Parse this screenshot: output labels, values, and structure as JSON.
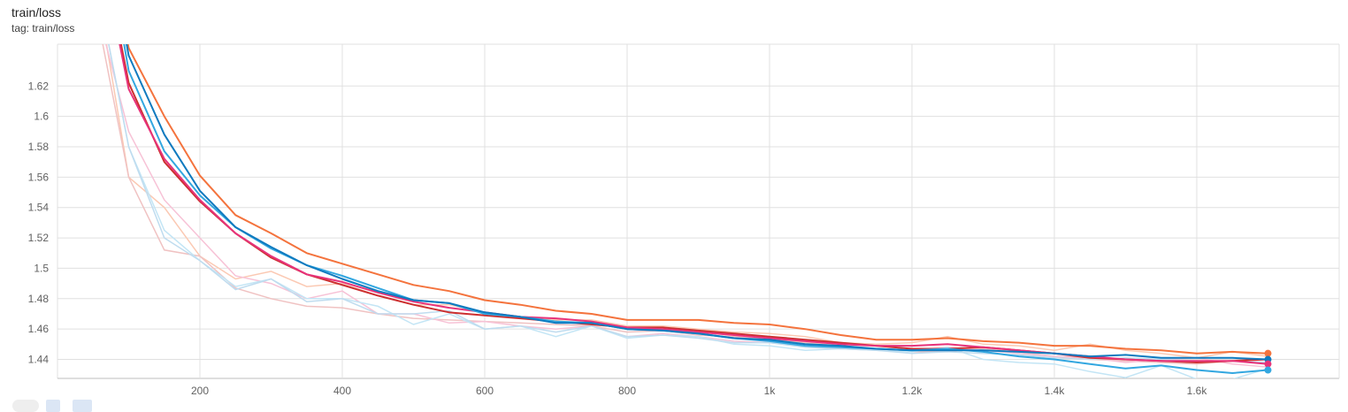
{
  "card": {
    "title": "train/loss",
    "subtitle": "tag: train/loss"
  },
  "chart_data": {
    "type": "line",
    "title": "train/loss",
    "xlabel": "",
    "ylabel": "",
    "xlim": [
      0,
      1800
    ],
    "ylim": [
      1.4275,
      1.6475
    ],
    "grid": true,
    "x_ticks": [
      {
        "value": 200,
        "label": "200"
      },
      {
        "value": 400,
        "label": "400"
      },
      {
        "value": 600,
        "label": "600"
      },
      {
        "value": 800,
        "label": "800"
      },
      {
        "value": 1000,
        "label": "1k"
      },
      {
        "value": 1200,
        "label": "1.2k"
      },
      {
        "value": 1400,
        "label": "1.4k"
      },
      {
        "value": 1600,
        "label": "1.6k"
      }
    ],
    "y_ticks": [
      {
        "value": 1.44,
        "label": "1.44"
      },
      {
        "value": 1.46,
        "label": "1.46"
      },
      {
        "value": 1.48,
        "label": "1.48"
      },
      {
        "value": 1.5,
        "label": "1.5"
      },
      {
        "value": 1.52,
        "label": "1.52"
      },
      {
        "value": 1.54,
        "label": "1.54"
      },
      {
        "value": 1.56,
        "label": "1.56"
      },
      {
        "value": 1.58,
        "label": "1.58"
      },
      {
        "value": 1.6,
        "label": "1.6"
      },
      {
        "value": 1.62,
        "label": "1.62"
      }
    ],
    "x": [
      50,
      100,
      150,
      200,
      250,
      300,
      350,
      400,
      450,
      500,
      550,
      600,
      650,
      700,
      750,
      800,
      850,
      900,
      950,
      1000,
      1050,
      1100,
      1150,
      1200,
      1250,
      1300,
      1350,
      1400,
      1450,
      1500,
      1550,
      1600,
      1650,
      1700
    ],
    "series": [
      {
        "color": "#f4733d",
        "raw_color": "#fbc9b3",
        "smoothed": [
          1.76,
          1.645,
          1.6,
          1.561,
          1.535,
          1.523,
          1.51,
          1.503,
          1.496,
          1.489,
          1.485,
          1.479,
          1.476,
          1.472,
          1.47,
          1.466,
          1.466,
          1.466,
          1.464,
          1.463,
          1.46,
          1.456,
          1.453,
          1.453,
          1.454,
          1.452,
          1.451,
          1.449,
          1.449,
          1.447,
          1.446,
          1.444,
          1.445,
          1.444
        ],
        "raw": [
          1.7,
          1.56,
          1.54,
          1.508,
          1.493,
          1.498,
          1.488,
          1.49,
          1.482,
          1.476,
          1.476,
          1.471,
          1.468,
          1.466,
          1.466,
          1.462,
          1.462,
          1.46,
          1.458,
          1.457,
          1.455,
          1.451,
          1.45,
          1.451,
          1.455,
          1.45,
          1.449,
          1.446,
          1.45,
          1.446,
          1.444,
          1.441,
          1.445,
          1.442
        ]
      },
      {
        "color": "#cc2f2f",
        "raw_color": "#f0c2c2",
        "smoothed": [
          1.74,
          1.622,
          1.57,
          1.544,
          1.523,
          1.507,
          1.496,
          1.489,
          1.482,
          1.476,
          1.471,
          1.469,
          1.467,
          1.465,
          1.463,
          1.461,
          1.461,
          1.459,
          1.457,
          1.455,
          1.453,
          1.451,
          1.449,
          1.447,
          1.447,
          1.448,
          1.446,
          1.444,
          1.441,
          1.44,
          1.439,
          1.438,
          1.439,
          1.44
        ],
        "raw": [
          1.68,
          1.56,
          1.512,
          1.508,
          1.487,
          1.48,
          1.475,
          1.474,
          1.47,
          1.467,
          1.466,
          1.465,
          1.464,
          1.463,
          1.462,
          1.458,
          1.459,
          1.456,
          1.455,
          1.453,
          1.451,
          1.449,
          1.447,
          1.445,
          1.445,
          1.447,
          1.445,
          1.442,
          1.44,
          1.439,
          1.438,
          1.437,
          1.439,
          1.438
        ]
      },
      {
        "color": "#e7337a",
        "raw_color": "#f7c2d6",
        "smoothed": [
          1.735,
          1.618,
          1.572,
          1.545,
          1.523,
          1.508,
          1.496,
          1.491,
          1.484,
          1.478,
          1.474,
          1.471,
          1.468,
          1.467,
          1.465,
          1.461,
          1.46,
          1.458,
          1.456,
          1.454,
          1.452,
          1.45,
          1.449,
          1.449,
          1.45,
          1.448,
          1.446,
          1.444,
          1.442,
          1.44,
          1.439,
          1.439,
          1.439,
          1.437
        ],
        "raw": [
          1.68,
          1.59,
          1.545,
          1.52,
          1.495,
          1.49,
          1.48,
          1.485,
          1.47,
          1.47,
          1.464,
          1.465,
          1.462,
          1.46,
          1.462,
          1.455,
          1.457,
          1.455,
          1.452,
          1.451,
          1.449,
          1.447,
          1.447,
          1.446,
          1.448,
          1.446,
          1.444,
          1.442,
          1.441,
          1.438,
          1.44,
          1.441,
          1.437,
          1.435
        ]
      },
      {
        "color": "#33a7e0",
        "raw_color": "#c3e5f5",
        "smoothed": [
          1.765,
          1.63,
          1.577,
          1.548,
          1.527,
          1.513,
          1.502,
          1.495,
          1.487,
          1.479,
          1.477,
          1.47,
          1.468,
          1.465,
          1.464,
          1.46,
          1.459,
          1.457,
          1.454,
          1.452,
          1.449,
          1.448,
          1.447,
          1.446,
          1.447,
          1.445,
          1.442,
          1.44,
          1.437,
          1.434,
          1.436,
          1.433,
          1.431,
          1.433
        ],
        "raw": [
          1.7,
          1.58,
          1.525,
          1.505,
          1.488,
          1.493,
          1.48,
          1.48,
          1.475,
          1.463,
          1.47,
          1.46,
          1.462,
          1.455,
          1.462,
          1.454,
          1.456,
          1.455,
          1.45,
          1.449,
          1.446,
          1.447,
          1.446,
          1.445,
          1.448,
          1.44,
          1.438,
          1.437,
          1.432,
          1.428,
          1.436,
          1.427,
          1.427,
          1.434
        ]
      },
      {
        "color": "#0f7abf",
        "raw_color": "#bfdcef",
        "smoothed": [
          1.77,
          1.64,
          1.588,
          1.551,
          1.527,
          1.514,
          1.502,
          1.493,
          1.485,
          1.479,
          1.477,
          1.471,
          1.468,
          1.464,
          1.464,
          1.46,
          1.459,
          1.457,
          1.454,
          1.453,
          1.45,
          1.449,
          1.447,
          1.446,
          1.446,
          1.446,
          1.445,
          1.444,
          1.442,
          1.443,
          1.441,
          1.441,
          1.441,
          1.44
        ],
        "raw": [
          1.7,
          1.58,
          1.52,
          1.505,
          1.486,
          1.493,
          1.478,
          1.48,
          1.47,
          1.47,
          1.472,
          1.46,
          1.462,
          1.458,
          1.462,
          1.455,
          1.456,
          1.454,
          1.451,
          1.451,
          1.448,
          1.447,
          1.446,
          1.444,
          1.445,
          1.444,
          1.443,
          1.441,
          1.44,
          1.441,
          1.44,
          1.439,
          1.439,
          1.438
        ]
      }
    ],
    "end_markers": [
      {
        "color": "#f4733d",
        "value": 1.444
      },
      {
        "color": "#0f7abf",
        "value": 1.44
      },
      {
        "color": "#e7337a",
        "value": 1.437
      },
      {
        "color": "#33a7e0",
        "value": 1.433
      }
    ]
  }
}
